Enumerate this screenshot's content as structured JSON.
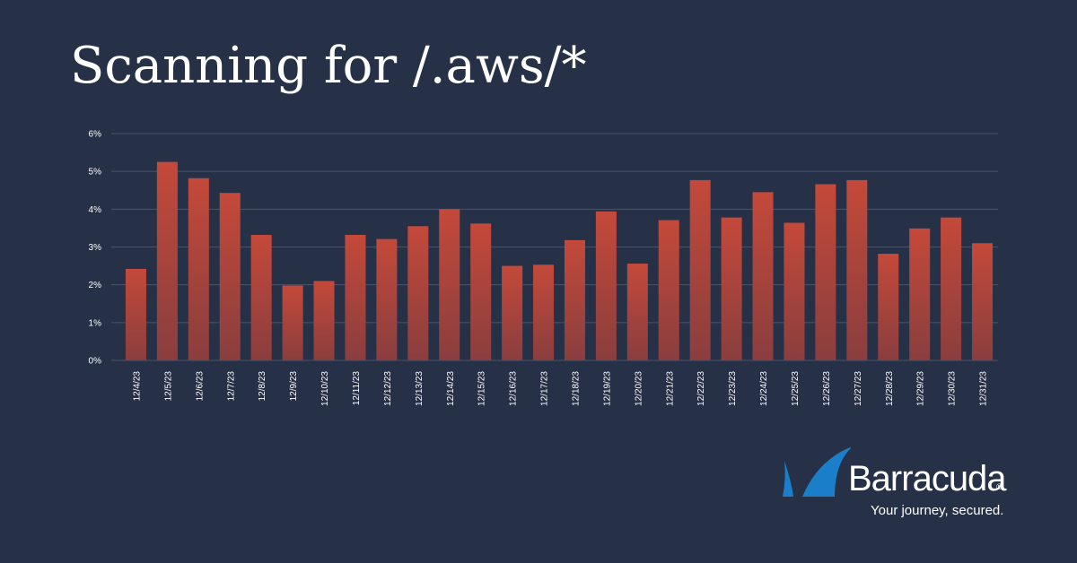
{
  "chart_data": {
    "type": "bar",
    "title": "Scanning for /.aws/*",
    "xlabel": "",
    "ylabel": "",
    "ylim": [
      0,
      6
    ],
    "y_ticks": [
      "0%",
      "1%",
      "2%",
      "3%",
      "4%",
      "5%",
      "6%"
    ],
    "grid": true,
    "categories": [
      "12/4/23",
      "12/5/23",
      "12/6/23",
      "12/7/23",
      "12/8/23",
      "12/9/23",
      "12/10/23",
      "12/11/23",
      "12/12/23",
      "12/13/23",
      "12/14/23",
      "12/15/23",
      "12/16/23",
      "12/17/23",
      "12/18/23",
      "12/19/23",
      "12/20/23",
      "12/21/23",
      "12/22/23",
      "12/23/23",
      "12/24/23",
      "12/25/23",
      "12/26/23",
      "12/27/23",
      "12/28/23",
      "12/29/23",
      "12/30/23",
      "12/31/23"
    ],
    "values": [
      2.42,
      5.25,
      4.82,
      4.43,
      3.32,
      1.98,
      2.1,
      3.32,
      3.21,
      3.55,
      4.0,
      3.62,
      2.5,
      2.53,
      3.18,
      3.94,
      2.56,
      3.71,
      4.77,
      3.78,
      4.45,
      3.64,
      4.66,
      4.77,
      2.82,
      3.49,
      3.78,
      3.1
    ],
    "colors": {
      "background": "#263147",
      "bar_top": "#c4493a",
      "bar_bottom": "#8a3e3e",
      "grid": "#48546b",
      "tick_text": "#ffffff"
    }
  },
  "logo": {
    "wordmark": "Barracuda",
    "registered": "®",
    "tagline": "Your journey, secured.",
    "icon": "barracuda-fin-icon",
    "colors": {
      "fin": "#1a7fc8"
    }
  }
}
